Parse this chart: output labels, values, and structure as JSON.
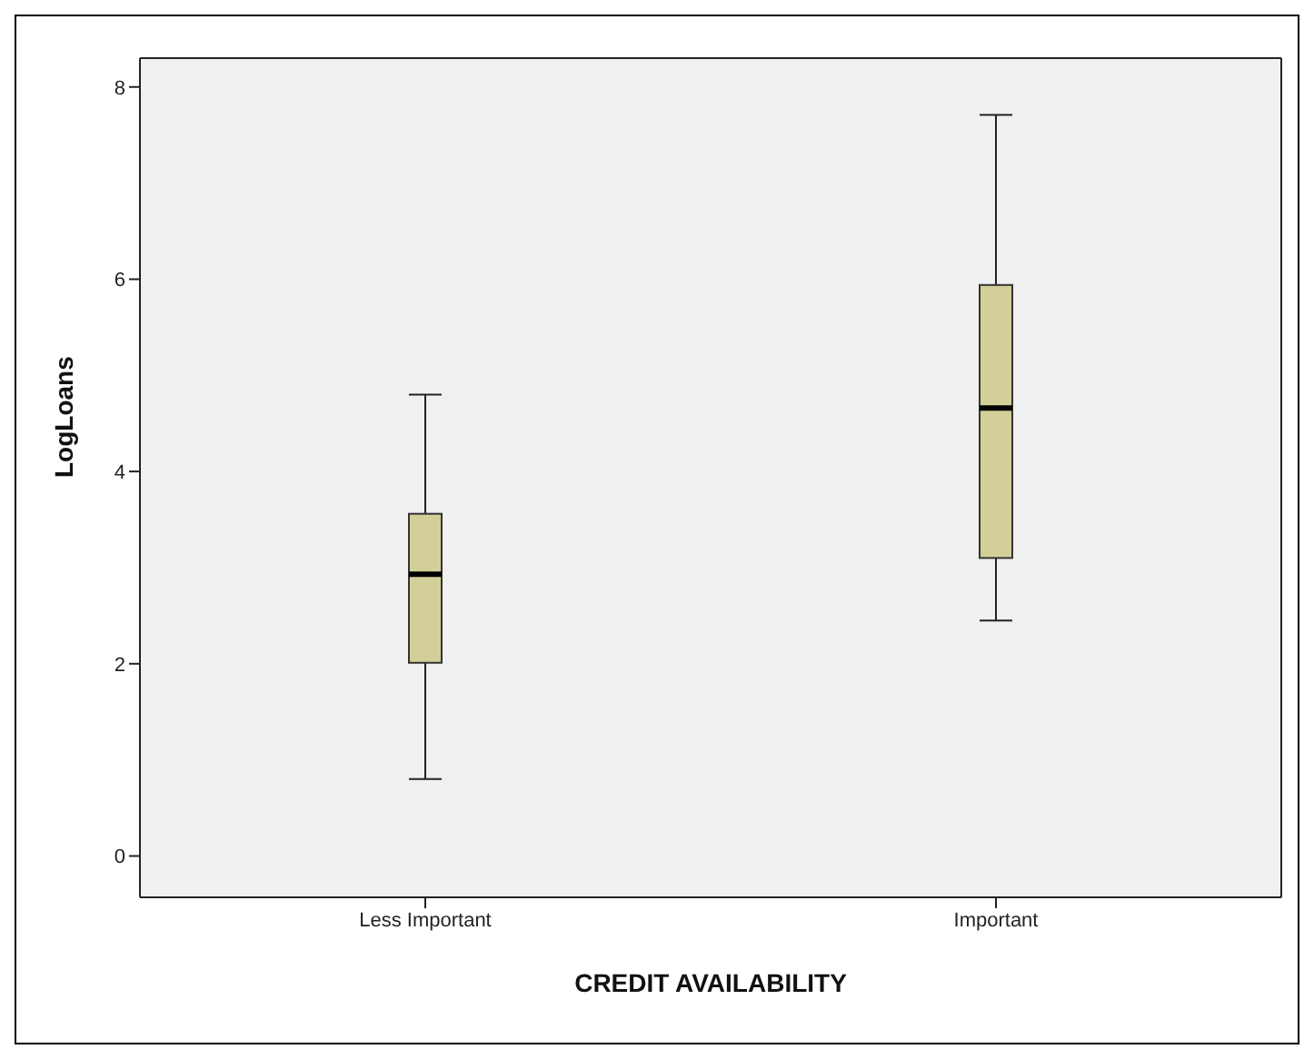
{
  "chart_data": {
    "type": "box",
    "xlabel": "CREDIT AVAILABILITY",
    "ylabel": "LogLoans",
    "categories": [
      "Less Important",
      "Important"
    ],
    "color": "#d3cf98",
    "ylim": [
      -0.43,
      8.3
    ],
    "yticks": [
      0,
      2,
      4,
      6,
      8
    ],
    "boxes": [
      {
        "low": 0.8,
        "q1": 2.01,
        "median": 2.93,
        "q3": 3.56,
        "high": 4.8
      },
      {
        "low": 2.45,
        "q1": 3.1,
        "median": 4.66,
        "q3": 5.94,
        "high": 7.71
      }
    ]
  }
}
